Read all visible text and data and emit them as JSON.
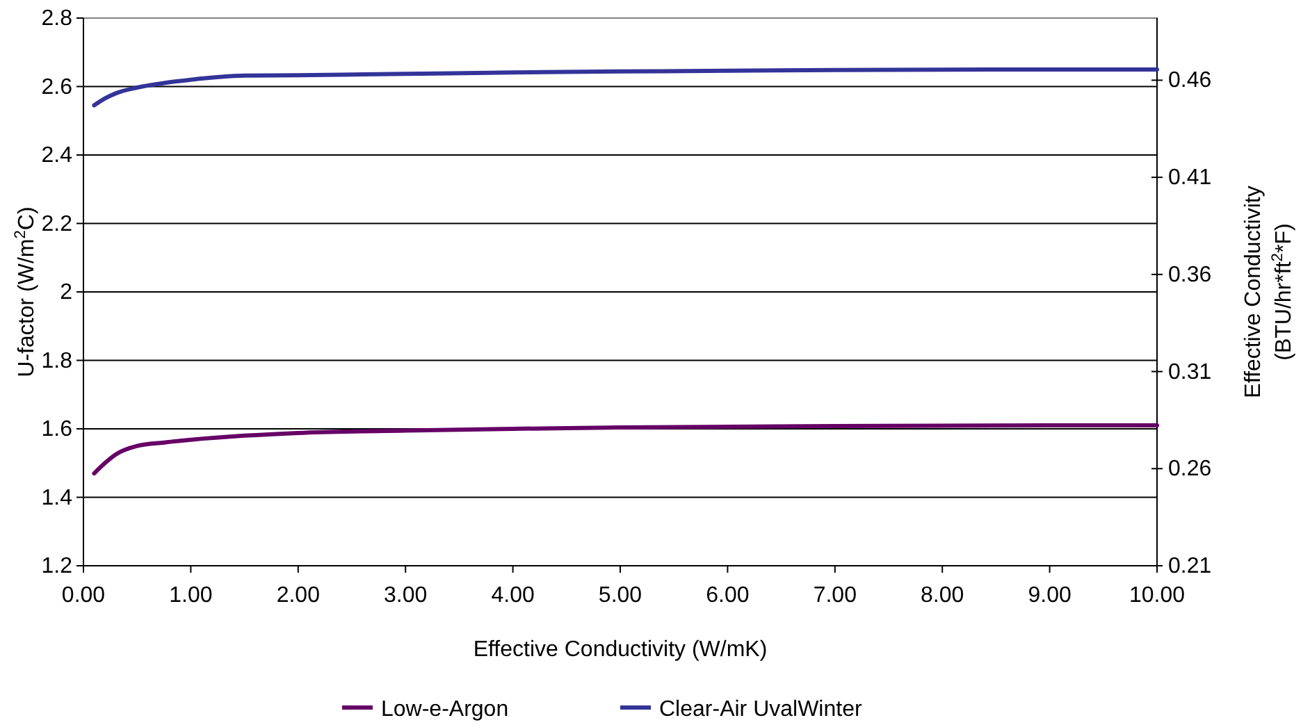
{
  "chart_data": {
    "type": "line",
    "xlabel": "Effective Conductivity (W/mK)",
    "ylabel": "U-factor (W/m$^{2}$C)",
    "y2label": "Effective Conductivity\n(BTU/hr*ft$^{2}$*F)",
    "xlim": [
      0,
      10
    ],
    "xticks": [
      {
        "value": 0,
        "label": "0.00"
      },
      {
        "value": 1,
        "label": "1.00"
      },
      {
        "value": 2,
        "label": "2.00"
      },
      {
        "value": 3,
        "label": "3.00"
      },
      {
        "value": 4,
        "label": "4.00"
      },
      {
        "value": 5,
        "label": "5.00"
      },
      {
        "value": 6,
        "label": "6.00"
      },
      {
        "value": 7,
        "label": "7.00"
      },
      {
        "value": 8,
        "label": "8.00"
      },
      {
        "value": 9,
        "label": "9.00"
      },
      {
        "value": 10,
        "label": "10.00"
      }
    ],
    "ylim": [
      1.2,
      2.8
    ],
    "yticks": [
      1.2,
      1.4,
      1.6,
      1.8,
      2,
      2.2,
      2.4,
      2.6,
      2.8
    ],
    "y2lim": [
      0.21,
      0.492
    ],
    "y2ticks": [
      0.21,
      0.26,
      0.31,
      0.36,
      0.41,
      0.46
    ],
    "grid": "y",
    "legend": "bottom",
    "line_style": "solid",
    "series": [
      {
        "name": "Low-e-Argon",
        "color": "#660066",
        "x": [
          0.1,
          0.2,
          0.3,
          0.5,
          0.75,
          1,
          1.5,
          2,
          3,
          4,
          5,
          6,
          7,
          8,
          9,
          10
        ],
        "values": [
          1.47,
          1.5,
          1.525,
          1.55,
          1.56,
          1.568,
          1.58,
          1.588,
          1.595,
          1.6,
          1.604,
          1.606,
          1.608,
          1.609,
          1.61,
          1.61
        ]
      },
      {
        "name": "Clear-Air UvalWinter",
        "color": "#333399",
        "x": [
          0.1,
          0.2,
          0.3,
          0.5,
          0.75,
          1,
          1.5,
          2,
          3,
          4,
          5,
          6,
          7,
          8,
          9,
          10
        ],
        "values": [
          2.545,
          2.565,
          2.58,
          2.597,
          2.61,
          2.62,
          2.632,
          2.633,
          2.637,
          2.641,
          2.644,
          2.646,
          2.648,
          2.649,
          2.65,
          2.65
        ]
      }
    ]
  }
}
